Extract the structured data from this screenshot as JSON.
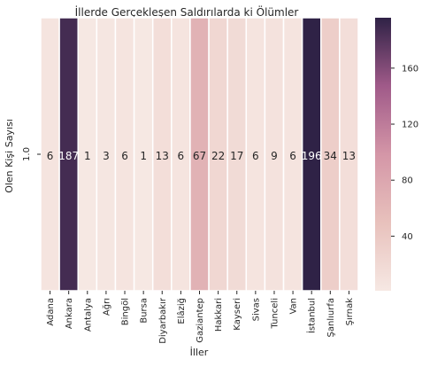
{
  "chart_data": {
    "type": "heatmap",
    "title": "İllerde Gerçekleşen Saldırılarda ki Ölümler",
    "xlabel": "İller",
    "ylabel": "Olen Kişi Sayısı",
    "row_labels": [
      "1.0"
    ],
    "categories": [
      "Adana",
      "Ankara",
      "Antalya",
      "Ağrı",
      "Bingöl",
      "Bursa",
      "Diyarbakır",
      "Elâziğ",
      "Gaziantep",
      "Hakkari",
      "Kayseri",
      "Sivas",
      "Tunceli",
      "Van",
      "İstanbul",
      "Şanlıurfa",
      "Şırnak"
    ],
    "values": [
      [
        6,
        187,
        1,
        3,
        6,
        1,
        13,
        6,
        67,
        22,
        17,
        6,
        9,
        6,
        196,
        34,
        13
      ]
    ],
    "colorbar": {
      "ticks": [
        40,
        80,
        120,
        160
      ],
      "vmin": 1,
      "vmax": 196
    },
    "colors": {
      "low": "#f6e8e3",
      "mid_low": "#e8c1bc",
      "mid": "#d496a7",
      "mid_high": "#a05a89",
      "high": "#2f2246"
    },
    "grid": false,
    "annotations_shown": true
  }
}
